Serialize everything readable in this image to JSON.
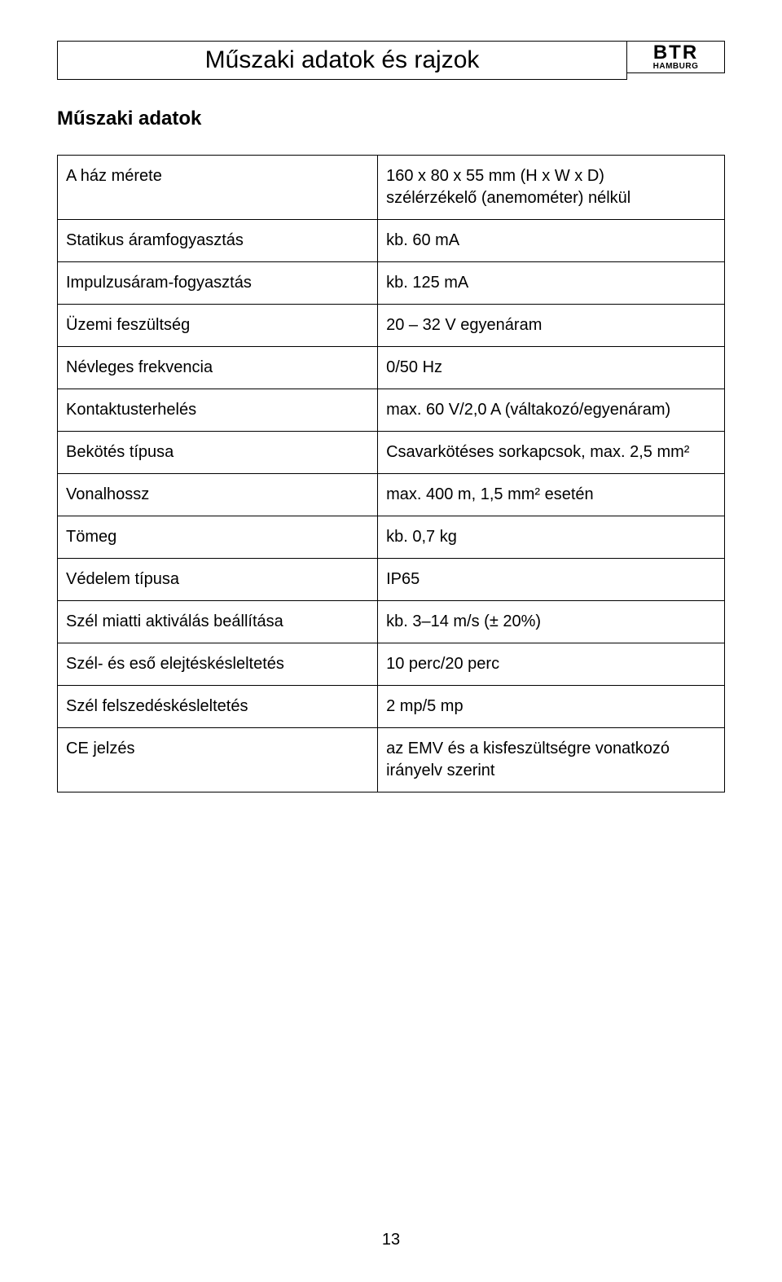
{
  "header": {
    "title": "Műszaki adatok és rajzok",
    "brand_main": "BTR",
    "brand_sub": "HAMBURG"
  },
  "section_heading": "Műszaki adatok",
  "table": {
    "rows": [
      {
        "label": "A ház mérete",
        "value": "160 x 80 x 55 mm (H x W x D)\nszélérzékelő (anemométer) nélkül"
      },
      {
        "label": "Statikus áramfogyasztás",
        "value": "kb. 60 mA"
      },
      {
        "label": "Impulzusáram-fogyasztás",
        "value": "kb. 125 mA"
      },
      {
        "label": "Üzemi feszültség",
        "value": "20 – 32 V egyenáram"
      },
      {
        "label": "Névleges frekvencia",
        "value": "0/50 Hz"
      },
      {
        "label": "Kontaktusterhelés",
        "value": "max. 60 V/2,0 A (váltakozó/egyenáram)"
      },
      {
        "label": "Bekötés típusa",
        "value": "Csavarkötéses sorkapcsok, max. 2,5 mm²"
      },
      {
        "label": "Vonalhossz",
        "value": "max. 400 m, 1,5 mm² esetén"
      },
      {
        "label": "Tömeg",
        "value": "kb. 0,7 kg"
      },
      {
        "label": "Védelem típusa",
        "value": "IP65"
      },
      {
        "label": "Szél miatti aktiválás beállítása",
        "value": "kb. 3–14 m/s (± 20%)"
      },
      {
        "label": "Szél- és eső elejtéskésleltetés",
        "value": "10 perc/20 perc"
      },
      {
        "label": "Szél felszedéskésleltetés",
        "value": "2 mp/5 mp"
      },
      {
        "label": "CE jelzés",
        "value": "az EMV és a kisfeszültségre vonatkozó irányelv szerint"
      }
    ]
  },
  "page_number": "13",
  "colors": {
    "background": "#ffffff",
    "text": "#000000",
    "border": "#000000"
  },
  "typography": {
    "title_fontsize": 30,
    "heading_fontsize": 24,
    "cell_fontsize": 20,
    "brand_main_fontsize": 24,
    "brand_sub_fontsize": 10
  }
}
